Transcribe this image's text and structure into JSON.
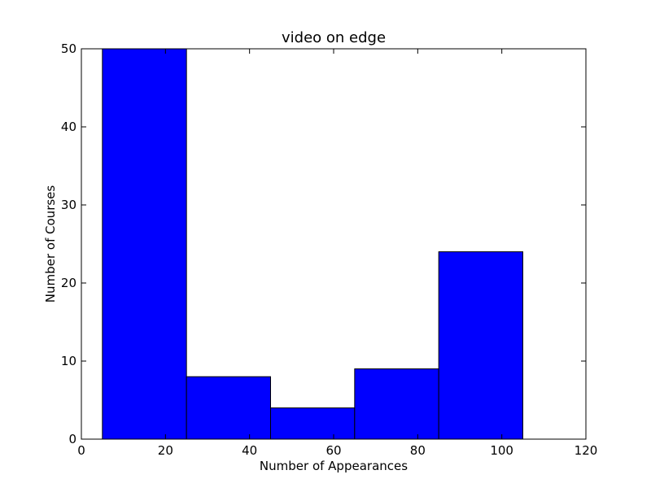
{
  "chart_data": {
    "type": "bar",
    "title": "video on edge",
    "xlabel": "Number of Appearances",
    "ylabel": "Number of Courses",
    "xlim": [
      0,
      120
    ],
    "ylim": [
      0,
      50
    ],
    "xticks": [
      0,
      20,
      40,
      60,
      80,
      100,
      120
    ],
    "yticks": [
      0,
      10,
      20,
      30,
      40,
      50
    ],
    "bins": [
      {
        "x0": 5,
        "x1": 25,
        "value": 50
      },
      {
        "x0": 25,
        "x1": 45,
        "value": 8
      },
      {
        "x0": 45,
        "x1": 65,
        "value": 4
      },
      {
        "x0": 65,
        "x1": 85,
        "value": 9
      },
      {
        "x0": 85,
        "x1": 105,
        "value": 24
      }
    ],
    "bar_color": "#0000ff",
    "edge_color": "#000000",
    "grid": false
  }
}
